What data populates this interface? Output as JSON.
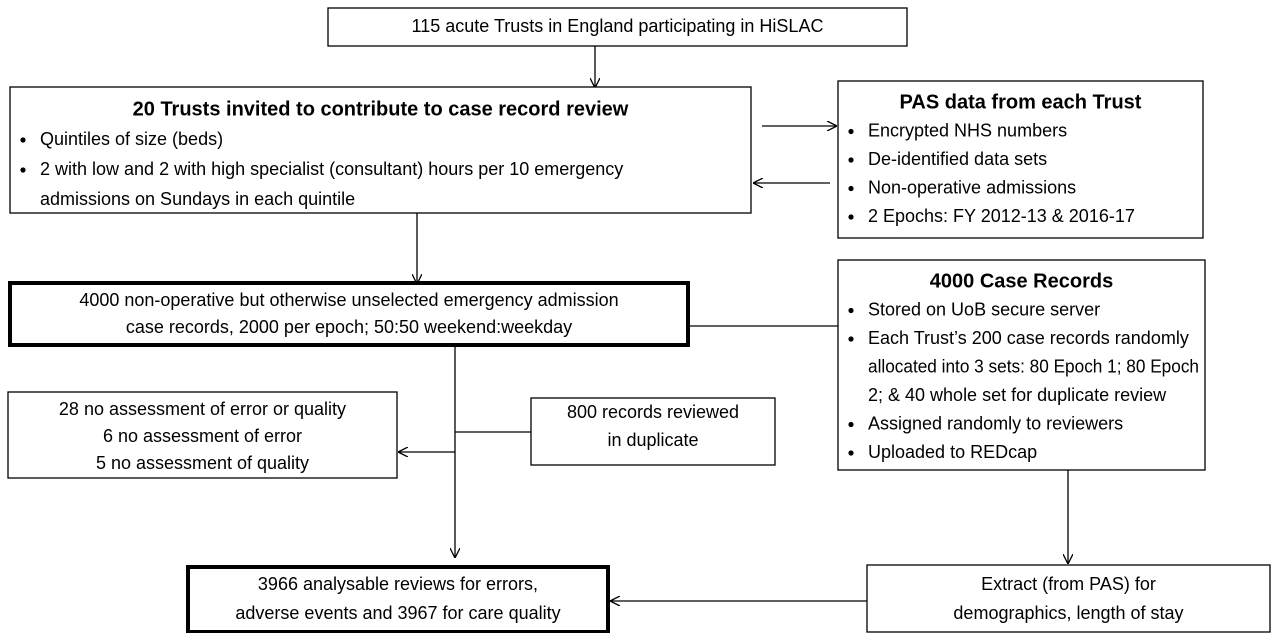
{
  "nodes": [
    {
      "lines": [
        "115 acute Trusts in England participating in HiSLAC"
      ]
    },
    {
      "title": "20 Trusts invited to contribute to case record review",
      "items": [
        [
          "Quintiles of size (beds)"
        ],
        [
          "2 with low and 2 with high specialist (consultant) hours per 10 emergency",
          "admissions on Sundays in each quintile"
        ]
      ]
    },
    {
      "title": "PAS data from each Trust",
      "items": [
        [
          "Encrypted NHS numbers"
        ],
        [
          "De-identified data sets"
        ],
        [
          "Non-operative admissions"
        ],
        [
          "2 Epochs: FY 2012-13 & 2016-17"
        ]
      ]
    },
    {
      "lines": [
        "4000 non-operative but otherwise unselected emergency admission",
        "case records, 2000 per epoch; 50:50 weekend:weekday"
      ]
    },
    {
      "title": "4000 Case Records",
      "items": [
        [
          "Stored on UoB secure server"
        ],
        [
          "Each Trust’s 200 case records randomly",
          "allocated into 3 sets: 80 Epoch 1; 80 Epoch",
          "2; & 40 whole set for duplicate review"
        ],
        [
          "Assigned randomly to reviewers"
        ],
        [
          "Uploaded to REDcap"
        ]
      ]
    },
    {
      "lines": [
        "28 no assessment  of error or quality",
        "6 no assessment  of error",
        "5 no assessment  of quality"
      ]
    },
    {
      "lines": [
        "800 records reviewed",
        "in duplicate"
      ]
    },
    {
      "lines": [
        "3966 analysable reviews for errors,",
        "adverse events and 3967 for care quality"
      ]
    },
    {
      "lines": [
        "Extract (from PAS) for",
        "demographics, length of stay"
      ]
    }
  ]
}
